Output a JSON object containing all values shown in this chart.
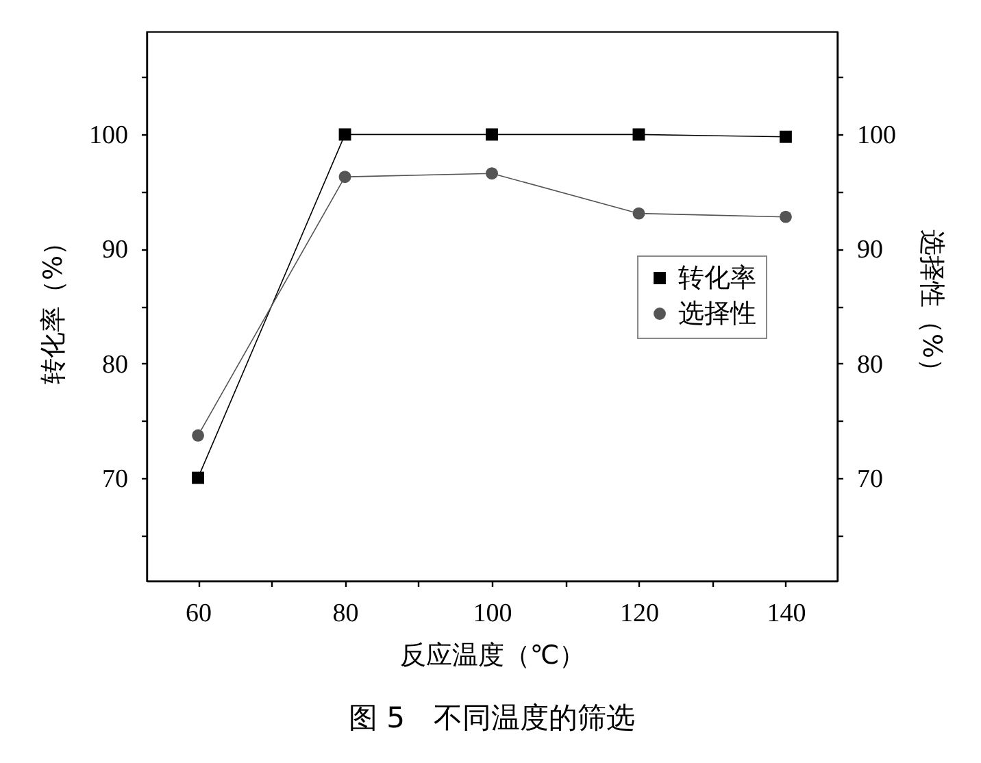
{
  "chart_data": {
    "type": "line",
    "title": "图 5　不同温度的筛选",
    "xlabel": "反应温度（℃）",
    "ylabel": "转化率（%）",
    "y2label": "选择性（%）",
    "x": [
      60,
      80,
      100,
      120,
      140
    ],
    "series": [
      {
        "name": "转化率",
        "color": "#000000",
        "marker": "square",
        "values": [
          70.0,
          100.0,
          100.0,
          100.0,
          99.8
        ]
      },
      {
        "name": "选择性",
        "color": "#555555",
        "marker": "circle",
        "axis": "y2",
        "values": [
          73.7,
          96.3,
          96.6,
          93.1,
          92.8
        ]
      }
    ],
    "xlim": [
      53,
      147
    ],
    "xticks": [
      60,
      {
        "value": 70,
        "label": null
      },
      80,
      {
        "value": 90,
        "label": null
      },
      100,
      {
        "value": 110,
        "label": null
      },
      120,
      {
        "value": 130,
        "label": null
      },
      140
    ],
    "ylim": [
      61,
      109
    ],
    "yticks": [
      {
        "value": 65,
        "label": null
      },
      70,
      {
        "value": 75,
        "label": null
      },
      80,
      {
        "value": 85,
        "label": null
      },
      90,
      {
        "value": 95,
        "label": null
      },
      100,
      {
        "value": 105,
        "label": null
      }
    ],
    "y2lim": [
      61,
      109
    ],
    "y2ticks": [
      {
        "value": 65,
        "label": null
      },
      70,
      {
        "value": 75,
        "label": null
      },
      80,
      {
        "value": 85,
        "label": null
      },
      90,
      {
        "value": 95,
        "label": null
      },
      100,
      {
        "value": 105,
        "label": null
      }
    ],
    "grid": false,
    "legend": "right",
    "line_style": "solid"
  }
}
